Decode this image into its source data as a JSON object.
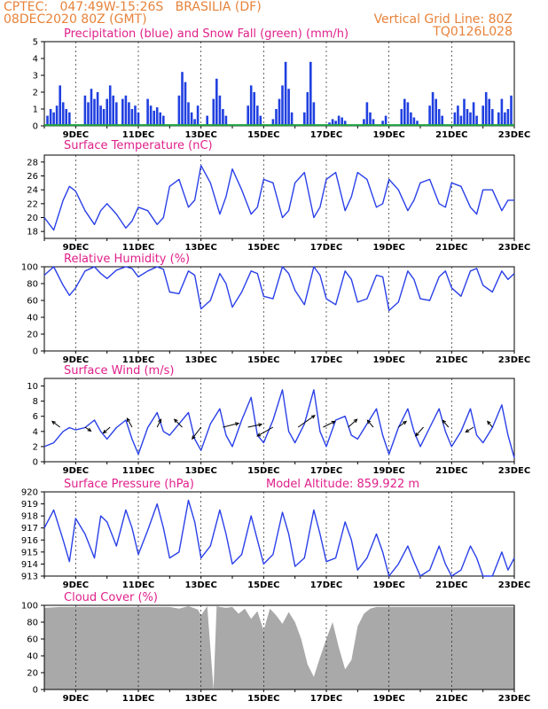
{
  "header": {
    "line1_left": "CPTEC:   047:49W-15:26S   BRASILIA (DF)",
    "line2_left": "08DEC2020 80Z (GMT)",
    "line2_right": "Vertical Grid Line: 80Z",
    "line3_right": "TQ0126L028"
  },
  "colors": {
    "precip": "#2040e0",
    "snow": "#20a040",
    "line": "#2a40e8",
    "cloud": "#a9a9a9",
    "title": "#e0208a",
    "header": "#e8833a"
  },
  "chart_data": [
    {
      "type": "bar",
      "title": "Precipitation (blue) and Snow Fall (green) (mm/h)",
      "x_range": [
        8.0,
        23.0
      ],
      "x_tick_labels": [
        "9DEC",
        "11DEC",
        "13DEC",
        "15DEC",
        "17DEC",
        "19DEC",
        "21DEC",
        "23DEC"
      ],
      "ylim": [
        0,
        5
      ],
      "y_ticks": [
        0,
        1,
        2,
        3,
        4,
        5
      ],
      "series": [
        {
          "name": "Precipitation",
          "x": [
            8.1,
            8.2,
            8.3,
            8.4,
            8.5,
            8.6,
            8.7,
            8.8,
            9.3,
            9.4,
            9.5,
            9.6,
            9.7,
            9.8,
            9.9,
            10.0,
            10.1,
            10.2,
            10.3,
            10.5,
            10.6,
            10.7,
            10.8,
            10.9,
            11.0,
            11.3,
            11.4,
            11.5,
            11.6,
            11.7,
            11.8,
            12.3,
            12.4,
            12.5,
            12.6,
            12.7,
            12.8,
            12.9,
            13.2,
            13.4,
            13.5,
            13.6,
            13.7,
            13.8,
            14.5,
            14.6,
            14.7,
            14.8,
            14.9,
            15.3,
            15.4,
            15.5,
            15.6,
            15.7,
            15.8,
            15.9,
            16.3,
            16.4,
            16.5,
            16.6,
            17.1,
            17.2,
            17.3,
            17.4,
            17.5,
            17.6,
            18.2,
            18.3,
            18.4,
            18.5,
            18.8,
            18.9,
            19.4,
            19.5,
            19.6,
            19.7,
            19.8,
            19.9,
            20.3,
            20.4,
            20.5,
            20.6,
            20.7,
            21.1,
            21.2,
            21.3,
            21.4,
            21.5,
            21.6,
            21.7,
            21.8,
            22.0,
            22.1,
            22.2,
            22.3,
            22.5,
            22.6,
            22.7,
            22.8,
            22.9
          ],
          "values": [
            0.6,
            1.0,
            0.8,
            1.2,
            2.4,
            1.4,
            1.0,
            0.8,
            1.8,
            1.4,
            2.2,
            1.6,
            2.0,
            1.2,
            1.0,
            1.6,
            2.4,
            1.8,
            1.4,
            1.6,
            1.8,
            1.4,
            1.0,
            1.2,
            0.8,
            1.6,
            1.2,
            0.9,
            1.1,
            0.8,
            0.6,
            1.8,
            3.2,
            2.6,
            1.4,
            0.8,
            0.4,
            1.2,
            0.6,
            1.6,
            2.8,
            1.8,
            1.0,
            0.6,
            1.2,
            2.4,
            2.0,
            1.2,
            0.6,
            0.4,
            1.0,
            1.6,
            2.4,
            3.8,
            2.2,
            0.8,
            0.8,
            2.0,
            3.8,
            1.4,
            0.2,
            0.4,
            0.3,
            0.6,
            0.5,
            0.3,
            0.4,
            1.4,
            0.8,
            0.4,
            0.3,
            0.6,
            1.0,
            1.6,
            1.4,
            0.8,
            0.5,
            0.3,
            1.2,
            2.0,
            1.6,
            1.0,
            0.6,
            0.8,
            1.2,
            0.6,
            1.6,
            1.0,
            0.8,
            1.4,
            0.6,
            1.2,
            2.0,
            1.6,
            1.0,
            0.8,
            1.6,
            0.8,
            1.0,
            1.8
          ]
        },
        {
          "name": "Snow Fall",
          "value": 0
        }
      ]
    },
    {
      "type": "line",
      "title": "Surface Temperature (nC)",
      "x_range": [
        8.0,
        23.0
      ],
      "x_tick_labels": [
        "9DEC",
        "11DEC",
        "13DEC",
        "15DEC",
        "17DEC",
        "19DEC",
        "21DEC",
        "23DEC"
      ],
      "ylim": [
        17,
        29
      ],
      "y_ticks": [
        18,
        20,
        22,
        24,
        26,
        28
      ],
      "x": [
        8.0,
        8.3,
        8.6,
        8.8,
        9.0,
        9.3,
        9.6,
        9.8,
        10.0,
        10.3,
        10.6,
        10.8,
        11.0,
        11.3,
        11.6,
        11.8,
        12.0,
        12.3,
        12.6,
        12.8,
        13.0,
        13.3,
        13.6,
        13.8,
        14.0,
        14.3,
        14.6,
        14.8,
        15.0,
        15.3,
        15.6,
        15.8,
        16.0,
        16.3,
        16.6,
        16.8,
        17.0,
        17.3,
        17.6,
        17.8,
        18.0,
        18.3,
        18.6,
        18.8,
        19.0,
        19.3,
        19.6,
        19.8,
        20.0,
        20.3,
        20.6,
        20.8,
        21.0,
        21.3,
        21.6,
        21.8,
        22.0,
        22.3,
        22.6,
        22.8,
        23.0
      ],
      "values": [
        20.0,
        18.2,
        22.5,
        24.5,
        23.8,
        21.0,
        19.0,
        21.0,
        22.0,
        20.5,
        18.5,
        19.5,
        21.5,
        21.0,
        19.0,
        20.0,
        24.5,
        25.5,
        21.5,
        22.5,
        27.5,
        25.0,
        20.5,
        23.0,
        27.0,
        24.0,
        20.5,
        21.5,
        25.5,
        25.0,
        20.0,
        21.0,
        25.0,
        26.5,
        20.0,
        21.5,
        25.5,
        26.5,
        21.0,
        23.0,
        26.5,
        25.5,
        21.5,
        22.0,
        25.5,
        24.0,
        21.0,
        22.5,
        25.0,
        25.5,
        22.0,
        21.5,
        25.0,
        24.5,
        21.5,
        20.5,
        24.0,
        24.0,
        21.0,
        22.5,
        22.5
      ]
    },
    {
      "type": "line",
      "title": "Relative Humidity (%)",
      "x_range": [
        8.0,
        23.0
      ],
      "x_tick_labels": [
        "9DEC",
        "11DEC",
        "13DEC",
        "15DEC",
        "17DEC",
        "19DEC",
        "21DEC",
        "23DEC"
      ],
      "ylim": [
        0,
        100
      ],
      "y_ticks": [
        0,
        20,
        40,
        60,
        80,
        100
      ],
      "x": [
        8.0,
        8.3,
        8.6,
        8.8,
        9.0,
        9.3,
        9.6,
        9.8,
        10.0,
        10.3,
        10.6,
        10.8,
        11.0,
        11.3,
        11.6,
        11.8,
        12.0,
        12.3,
        12.6,
        12.8,
        13.0,
        13.3,
        13.6,
        13.8,
        14.0,
        14.3,
        14.6,
        14.8,
        15.0,
        15.3,
        15.6,
        15.8,
        16.0,
        16.3,
        16.6,
        16.8,
        17.0,
        17.3,
        17.6,
        17.8,
        18.0,
        18.3,
        18.6,
        18.8,
        19.0,
        19.3,
        19.6,
        19.8,
        20.0,
        20.3,
        20.6,
        20.8,
        21.0,
        21.3,
        21.6,
        21.8,
        22.0,
        22.3,
        22.6,
        22.8,
        23.0
      ],
      "values": [
        90,
        100,
        78,
        66,
        75,
        95,
        100,
        92,
        86,
        96,
        100,
        98,
        88,
        95,
        100,
        97,
        70,
        68,
        95,
        90,
        50,
        60,
        92,
        80,
        52,
        70,
        95,
        92,
        65,
        62,
        100,
        92,
        72,
        55,
        100,
        90,
        62,
        55,
        95,
        85,
        58,
        62,
        90,
        88,
        48,
        58,
        95,
        85,
        62,
        60,
        88,
        95,
        75,
        65,
        95,
        98,
        78,
        70,
        95,
        85,
        92
      ]
    },
    {
      "type": "line",
      "title": "Surface Wind (m/s)",
      "x_range": [
        8.0,
        23.0
      ],
      "x_tick_labels": [
        "9DEC",
        "11DEC",
        "13DEC",
        "15DEC",
        "17DEC",
        "19DEC",
        "21DEC",
        "23DEC"
      ],
      "ylim": [
        0,
        11
      ],
      "y_ticks": [
        0,
        2,
        4,
        6,
        8,
        10
      ],
      "x": [
        8.0,
        8.3,
        8.6,
        8.8,
        9.0,
        9.3,
        9.6,
        9.8,
        10.0,
        10.3,
        10.6,
        10.8,
        11.0,
        11.3,
        11.6,
        11.8,
        12.0,
        12.3,
        12.6,
        12.8,
        13.0,
        13.3,
        13.6,
        13.8,
        14.0,
        14.3,
        14.6,
        14.8,
        15.0,
        15.3,
        15.6,
        15.8,
        16.0,
        16.3,
        16.6,
        16.8,
        17.0,
        17.3,
        17.6,
        17.8,
        18.0,
        18.3,
        18.6,
        18.8,
        19.0,
        19.3,
        19.6,
        19.8,
        20.0,
        20.3,
        20.6,
        20.8,
        21.0,
        21.3,
        21.6,
        21.8,
        22.0,
        22.3,
        22.6,
        22.8,
        23.0
      ],
      "values": [
        2.0,
        2.5,
        4.0,
        4.5,
        4.2,
        4.5,
        5.5,
        4.0,
        3.0,
        4.5,
        5.5,
        3.0,
        1.0,
        4.5,
        6.5,
        4.0,
        3.5,
        5.0,
        6.5,
        3.0,
        1.5,
        5.0,
        7.0,
        3.5,
        2.0,
        5.5,
        8.5,
        3.5,
        2.5,
        5.5,
        9.5,
        4.0,
        2.5,
        5.0,
        9.5,
        4.0,
        2.0,
        5.5,
        6.0,
        3.5,
        3.0,
        5.0,
        7.0,
        3.5,
        1.0,
        4.5,
        7.0,
        4.0,
        2.0,
        4.5,
        7.0,
        4.0,
        2.0,
        4.0,
        7.0,
        3.5,
        2.5,
        4.5,
        7.5,
        3.5,
        0.5
      ],
      "arrows": [
        {
          "x": 8.5,
          "u": -0.8,
          "v": 0.6
        },
        {
          "x": 9.3,
          "u": 0.6,
          "v": -0.4
        },
        {
          "x": 10.1,
          "u": -0.7,
          "v": -0.6
        },
        {
          "x": 10.8,
          "u": -0.5,
          "v": 0.9
        },
        {
          "x": 11.6,
          "u": 0.4,
          "v": 0.8
        },
        {
          "x": 12.4,
          "u": -0.8,
          "v": 0.8
        },
        {
          "x": 13.0,
          "u": -0.9,
          "v": -1.2
        },
        {
          "x": 13.7,
          "u": 1.6,
          "v": 0.4
        },
        {
          "x": 14.5,
          "u": 1.4,
          "v": 0.3
        },
        {
          "x": 15.3,
          "u": -1.6,
          "v": -0.9
        },
        {
          "x": 16.1,
          "u": 1.7,
          "v": 1.2
        },
        {
          "x": 16.9,
          "u": 1.2,
          "v": 0.6
        },
        {
          "x": 17.7,
          "u": 0.9,
          "v": 0.8
        },
        {
          "x": 18.5,
          "u": -0.6,
          "v": 0.7
        },
        {
          "x": 19.3,
          "u": 0.8,
          "v": 0.6
        },
        {
          "x": 20.1,
          "u": -0.8,
          "v": -0.9
        },
        {
          "x": 20.9,
          "u": -0.6,
          "v": 0.7
        },
        {
          "x": 21.7,
          "u": -0.8,
          "v": -0.5
        },
        {
          "x": 22.3,
          "u": -0.5,
          "v": 0.6
        }
      ]
    },
    {
      "type": "line",
      "title": "Surface Pressure (hPa)",
      "annotation": "Model Altitude: 859.922 m",
      "x_range": [
        8.0,
        23.0
      ],
      "x_tick_labels": [
        "9DEC",
        "11DEC",
        "13DEC",
        "15DEC",
        "17DEC",
        "19DEC",
        "21DEC",
        "23DEC"
      ],
      "ylim": [
        913,
        920
      ],
      "y_ticks": [
        913,
        914,
        915,
        916,
        917,
        918,
        919,
        920
      ],
      "x": [
        8.0,
        8.3,
        8.6,
        8.8,
        9.0,
        9.3,
        9.6,
        9.8,
        10.0,
        10.3,
        10.6,
        10.8,
        11.0,
        11.3,
        11.6,
        11.8,
        12.0,
        12.3,
        12.6,
        12.8,
        13.0,
        13.3,
        13.6,
        13.8,
        14.0,
        14.3,
        14.6,
        14.8,
        15.0,
        15.3,
        15.6,
        15.8,
        16.0,
        16.3,
        16.6,
        16.8,
        17.0,
        17.3,
        17.6,
        17.8,
        18.0,
        18.3,
        18.6,
        18.8,
        19.0,
        19.3,
        19.6,
        19.8,
        20.0,
        20.3,
        20.6,
        20.8,
        21.0,
        21.3,
        21.6,
        21.8,
        22.0,
        22.3,
        22.6,
        22.8,
        23.0
      ],
      "values": [
        917.0,
        918.5,
        916.0,
        914.2,
        917.8,
        916.5,
        914.5,
        918.0,
        917.5,
        915.5,
        918.5,
        917.0,
        914.8,
        916.8,
        919.0,
        917.0,
        914.5,
        915.0,
        919.3,
        917.5,
        914.5,
        915.5,
        918.5,
        916.5,
        914.0,
        914.8,
        918.0,
        916.0,
        914.0,
        914.8,
        918.3,
        916.5,
        913.8,
        914.5,
        918.5,
        916.5,
        914.2,
        914.5,
        917.5,
        916.0,
        913.5,
        914.5,
        916.5,
        915.0,
        913.0,
        914.0,
        915.5,
        914.2,
        913.0,
        913.5,
        915.5,
        914.0,
        913.0,
        913.5,
        915.5,
        914.5,
        913.0,
        913.0,
        915.0,
        913.5,
        914.5
      ]
    },
    {
      "type": "area",
      "title": "Cloud Cover (%)",
      "x_range": [
        8.0,
        23.0
      ],
      "x_tick_labels": [
        "9DEC",
        "11DEC",
        "13DEC",
        "15DEC",
        "17DEC",
        "19DEC",
        "21DEC",
        "23DEC"
      ],
      "ylim": [
        0,
        100
      ],
      "y_ticks": [
        0,
        20,
        40,
        60,
        80,
        100
      ],
      "x": [
        8.0,
        8.5,
        9.0,
        9.5,
        10.0,
        10.5,
        11.0,
        11.5,
        12.0,
        12.3,
        12.6,
        12.9,
        13.0,
        13.2,
        13.4,
        13.5,
        13.6,
        13.8,
        14.0,
        14.2,
        14.4,
        14.6,
        14.8,
        15.0,
        15.2,
        15.4,
        15.6,
        15.8,
        16.0,
        16.2,
        16.4,
        16.6,
        16.8,
        17.0,
        17.2,
        17.4,
        17.6,
        17.8,
        18.0,
        18.2,
        18.4,
        18.6,
        18.8,
        19.0,
        19.5,
        20.0,
        20.5,
        21.0,
        21.5,
        22.0,
        22.5,
        23.0
      ],
      "values": [
        97,
        98,
        98,
        98,
        98,
        98,
        98,
        98,
        98,
        96,
        99,
        95,
        88,
        99,
        0,
        99,
        98,
        97,
        98,
        90,
        96,
        84,
        93,
        70,
        96,
        88,
        78,
        92,
        80,
        60,
        30,
        15,
        38,
        60,
        80,
        50,
        24,
        35,
        75,
        90,
        96,
        98,
        98,
        98,
        98,
        98,
        98,
        98,
        98,
        98,
        98,
        98
      ]
    }
  ]
}
